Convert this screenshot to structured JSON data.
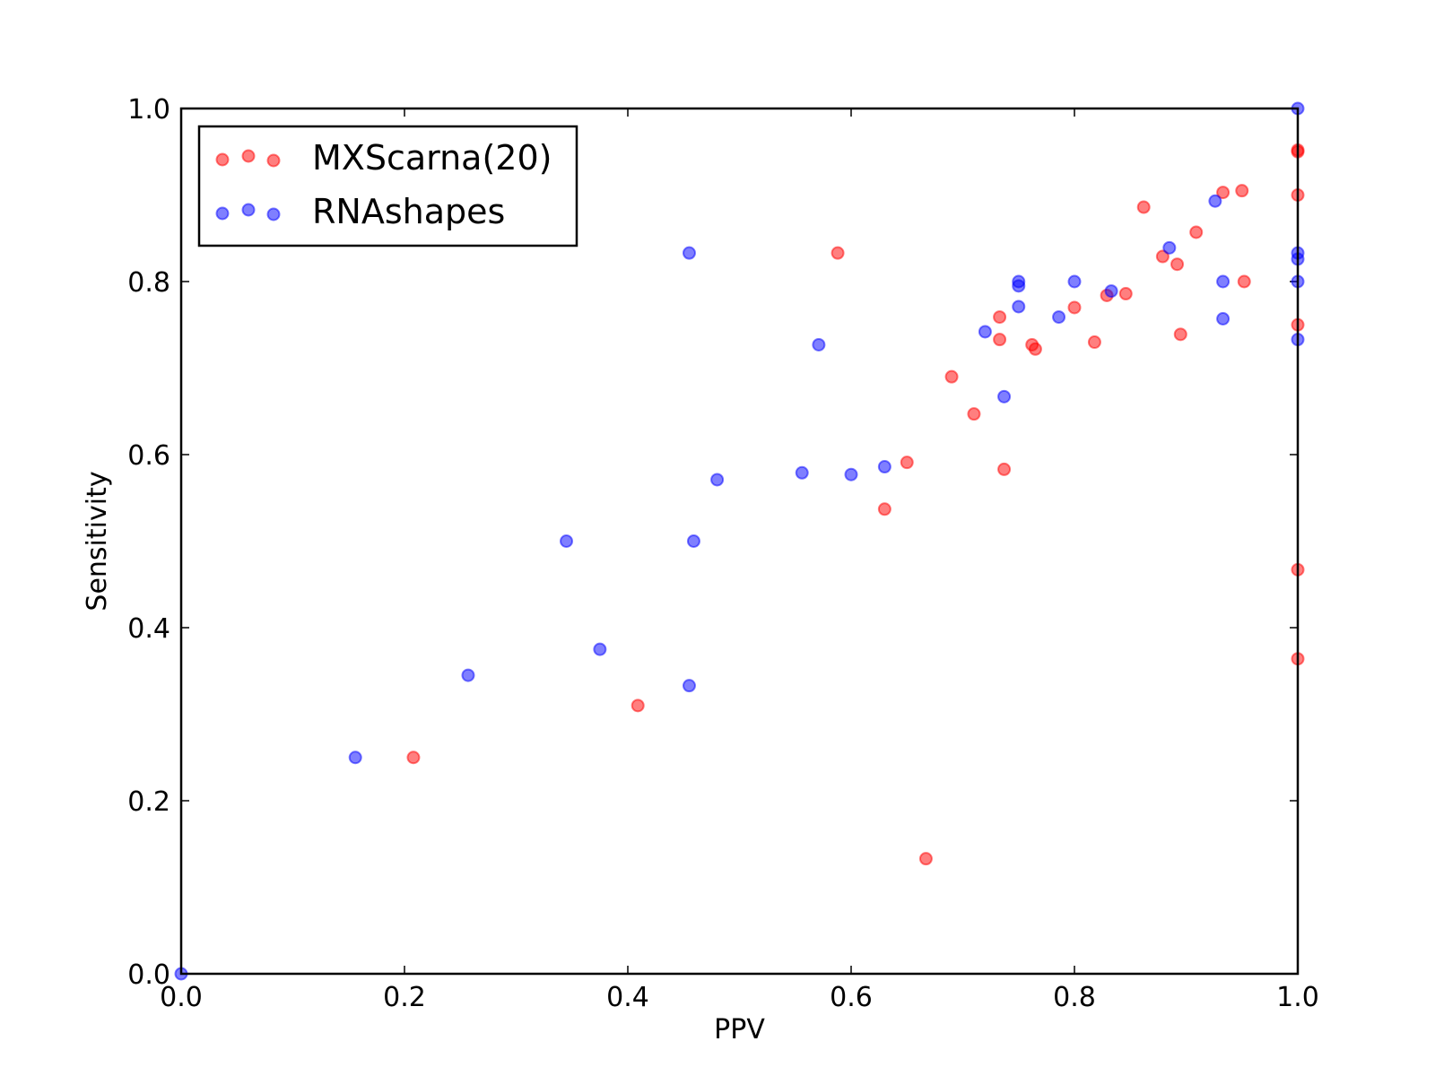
{
  "chart_data": {
    "type": "scatter",
    "xlabel": "PPV",
    "ylabel": "Sensitivity",
    "xlim": [
      0.0,
      1.0
    ],
    "ylim": [
      0.0,
      1.0
    ],
    "x_ticks": [
      "0.0",
      "0.2",
      "0.4",
      "0.6",
      "0.8",
      "1.0"
    ],
    "y_ticks": [
      "0.0",
      "0.2",
      "0.4",
      "0.6",
      "0.8",
      "1.0"
    ],
    "grid": false,
    "legend_position": "top-left",
    "series": [
      {
        "name": "MXScarna(20)",
        "color": "#ff0000",
        "points": [
          [
            0.208,
            0.25
          ],
          [
            0.409,
            0.31
          ],
          [
            0.588,
            0.833
          ],
          [
            0.63,
            0.537
          ],
          [
            0.65,
            0.591
          ],
          [
            0.667,
            0.133
          ],
          [
            0.69,
            0.69
          ],
          [
            0.71,
            0.647
          ],
          [
            0.733,
            0.733
          ],
          [
            0.733,
            0.759
          ],
          [
            0.737,
            0.583
          ],
          [
            0.762,
            0.727
          ],
          [
            0.765,
            0.722
          ],
          [
            0.8,
            0.77
          ],
          [
            0.818,
            0.73
          ],
          [
            0.829,
            0.784
          ],
          [
            0.846,
            0.786
          ],
          [
            0.862,
            0.886
          ],
          [
            0.879,
            0.829
          ],
          [
            0.892,
            0.82
          ],
          [
            0.895,
            0.739
          ],
          [
            0.909,
            0.857
          ],
          [
            0.933,
            0.903
          ],
          [
            0.95,
            0.905
          ],
          [
            0.952,
            0.8
          ],
          [
            1.0,
            0.952
          ],
          [
            1.0,
            0.95
          ],
          [
            1.0,
            0.9
          ],
          [
            1.0,
            0.75
          ],
          [
            1.0,
            0.467
          ],
          [
            1.0,
            0.364
          ]
        ]
      },
      {
        "name": "RNAshapes",
        "color": "#0000ff",
        "points": [
          [
            0.0,
            0.0
          ],
          [
            0.156,
            0.25
          ],
          [
            0.257,
            0.345
          ],
          [
            0.345,
            0.5
          ],
          [
            0.375,
            0.375
          ],
          [
            0.455,
            0.333
          ],
          [
            0.455,
            0.833
          ],
          [
            0.459,
            0.5
          ],
          [
            0.48,
            0.571
          ],
          [
            0.556,
            0.579
          ],
          [
            0.571,
            0.727
          ],
          [
            0.6,
            0.577
          ],
          [
            0.63,
            0.586
          ],
          [
            0.72,
            0.742
          ],
          [
            0.737,
            0.667
          ],
          [
            0.75,
            0.8
          ],
          [
            0.75,
            0.795
          ],
          [
            0.75,
            0.771
          ],
          [
            0.786,
            0.759
          ],
          [
            0.8,
            0.8
          ],
          [
            0.833,
            0.789
          ],
          [
            0.885,
            0.839
          ],
          [
            0.926,
            0.893
          ],
          [
            0.933,
            0.8
          ],
          [
            0.933,
            0.757
          ],
          [
            1.0,
            1.0
          ],
          [
            1.0,
            0.833
          ],
          [
            1.0,
            0.826
          ],
          [
            1.0,
            0.8
          ],
          [
            1.0,
            0.733
          ]
        ]
      }
    ]
  }
}
